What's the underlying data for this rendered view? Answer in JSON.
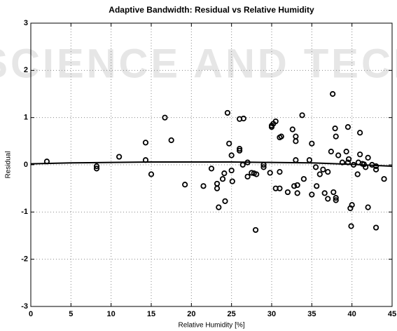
{
  "watermark": "SCIENCE AND TECH",
  "chart_data": {
    "type": "scatter",
    "title": "Adaptive Bandwidth: Residual vs Relative Humidity",
    "x_label": "Relative Humidity [%]",
    "y_label": "Residual",
    "xlim": [
      0,
      45
    ],
    "xticks": [
      0,
      5,
      10,
      15,
      20,
      25,
      30,
      35,
      40,
      45
    ],
    "ylim": [
      -3,
      3
    ],
    "yticks": [
      -3,
      -2,
      -1,
      0,
      1,
      2,
      3
    ],
    "grid": true,
    "series": [
      {
        "style": "markers",
        "color": "#000000",
        "x": [
          2,
          8.2,
          8.2,
          11,
          14.3,
          14.3,
          15,
          16.7,
          17.5,
          19.2,
          21.5,
          22.5,
          23.2,
          23.2,
          23.4,
          23.9,
          24.1,
          24.2,
          24.5,
          24.7,
          25,
          25,
          25.1,
          26,
          26,
          26,
          26.5,
          26.4,
          27,
          27,
          27.5,
          27.8,
          28,
          28.1,
          29,
          29,
          29.8,
          30,
          30,
          30.2,
          30.5,
          30.5,
          31,
          31,
          31.2,
          31,
          32,
          32.6,
          32.8,
          33,
          33,
          33,
          33.2,
          33.2,
          33.8,
          34,
          34.7,
          35,
          35,
          35.5,
          35.6,
          36,
          36.4,
          36.6,
          37,
          37,
          37.4,
          37.6,
          37.7,
          37.9,
          38,
          38,
          38,
          38.3,
          38.8,
          39.3,
          39.5,
          39.5,
          39.6,
          39.8,
          39.9,
          40,
          40.2,
          40.7,
          40.8,
          41,
          41,
          41.3,
          41.5,
          41.7,
          42,
          42,
          42.5,
          43,
          43,
          43,
          44
        ],
        "values": [
          0.07,
          -0.03,
          -0.08,
          0.17,
          0.47,
          0.1,
          -0.2,
          1.0,
          0.52,
          -0.42,
          -0.45,
          -0.08,
          -0.4,
          -0.5,
          -0.9,
          -0.3,
          -0.18,
          -0.77,
          1.1,
          0.45,
          0.2,
          -0.12,
          -0.35,
          0.97,
          0.3,
          0.34,
          0.98,
          0,
          0.05,
          -0.25,
          -0.17,
          -0.18,
          -1.38,
          -0.2,
          -0.05,
          0,
          -0.17,
          0.8,
          0.83,
          0.87,
          0.92,
          -0.5,
          -0.15,
          0.58,
          0.6,
          -0.5,
          -0.58,
          0.75,
          -0.45,
          0.6,
          0.5,
          0.1,
          -0.43,
          -0.6,
          1.05,
          -0.3,
          0.1,
          0.45,
          -0.63,
          -0.05,
          -0.45,
          -0.2,
          -0.1,
          -0.6,
          -0.15,
          -0.72,
          0.28,
          1.5,
          -0.58,
          0.77,
          0.6,
          -0.7,
          -0.75,
          0.2,
          0.05,
          0.28,
          0.05,
          0.8,
          0.12,
          -0.92,
          -1.3,
          -0.85,
          0,
          -0.2,
          0.05,
          0.22,
          0.68,
          0.02,
          0.01,
          -0.05,
          -0.9,
          0.15,
          0,
          -0.03,
          -1.33,
          -0.1,
          -0.3
        ]
      },
      {
        "style": "line",
        "color": "#000000",
        "x": [
          0,
          5,
          10,
          15,
          20,
          25,
          30,
          35,
          40,
          45
        ],
        "values": [
          0.02,
          0.04,
          0.05,
          0.06,
          0.06,
          0.06,
          0.05,
          0.04,
          0.01,
          -0.03
        ]
      }
    ]
  }
}
